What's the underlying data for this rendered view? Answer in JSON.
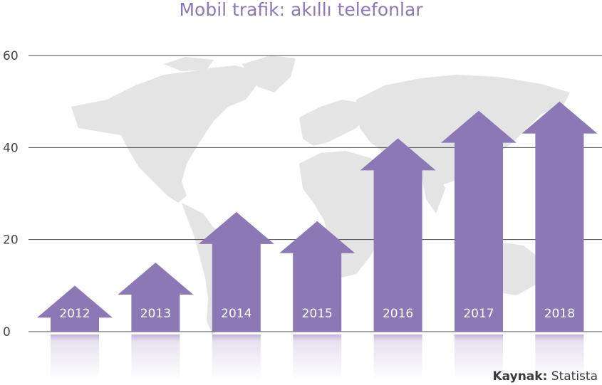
{
  "chart_data": {
    "type": "bar",
    "title": "Mobil trafik: akıllı telefonlar",
    "categories": [
      "2012",
      "2013",
      "2014",
      "2015",
      "2016",
      "2017",
      "2018"
    ],
    "values": [
      10,
      15,
      26,
      24,
      42,
      48,
      50
    ],
    "yticks": [
      "0",
      "20",
      "40",
      "60"
    ],
    "ylim": [
      0,
      60
    ],
    "grid": true,
    "mark_style": "upward arrows over world map background",
    "source_label": "Kaynak:",
    "source_value": "Statista"
  },
  "colors": {
    "title": "#8c78b8",
    "bar": "#8d78b6",
    "map": "#e4e4e4",
    "grid": "#4a4a4a",
    "label_text": "#ffffff",
    "axis_text": "#444444"
  }
}
